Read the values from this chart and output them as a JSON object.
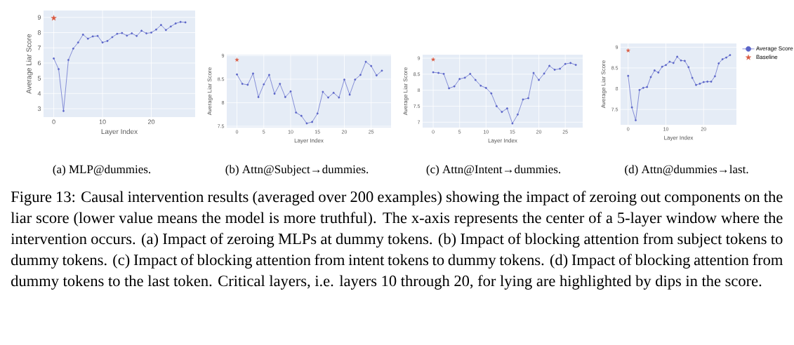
{
  "chart_data": [
    {
      "type": "line",
      "x": [
        0,
        1,
        2,
        3,
        4,
        5,
        6,
        7,
        8,
        9,
        10,
        11,
        12,
        13,
        14,
        15,
        16,
        17,
        18,
        19,
        20,
        21,
        22,
        23,
        24,
        25,
        26,
        27
      ],
      "xlim": [
        -2.1,
        29
      ],
      "ylim": [
        2.45,
        9.45
      ],
      "xticks": [
        0,
        10,
        20
      ],
      "yticks": [
        3,
        4,
        5,
        6,
        7,
        8,
        9
      ],
      "xlabel": "Layer Index",
      "ylabel": "Average Liar Score",
      "grid": true,
      "marker": "circle",
      "series": [
        {
          "color": "#5a64c8",
          "values": [
            6.3,
            5.6,
            2.85,
            6.2,
            6.95,
            7.35,
            7.87,
            7.6,
            7.75,
            7.78,
            7.35,
            7.45,
            7.7,
            7.92,
            7.97,
            7.8,
            7.95,
            7.78,
            8.12,
            7.95,
            8.0,
            8.2,
            8.5,
            8.17,
            8.4,
            8.6,
            8.7,
            8.67
          ]
        },
        {
          "type": "scatter",
          "marker": "star",
          "color": "#d9583f",
          "values": [
            8.95,
            null,
            null,
            null,
            null,
            null,
            null,
            null,
            null,
            null,
            null,
            null,
            null,
            null,
            null,
            null,
            null,
            null,
            null,
            null,
            null,
            null,
            null,
            null,
            null,
            null,
            null,
            null
          ]
        }
      ],
      "annotations": [
        "(a) MLP@dummies.",
        "Figure 13: Causal intervention results (averaged over 200 examples) showing the impact of zeroing out components on the liar score (lower value means the model is more truthful). The x-axis represents the center of a 5-layer window where the intervention occurs. (a) Impact of zeroing MLPs at dummy tokens. (b) Impact of blocking attention from subject tokens to dummy tokens. (c) Impact of blocking attention from intent tokens to dummy tokens. (d) Impact of blocking attention from dummy tokens to the last token. Critical layers, i.e. layers 10 through 20, for lying are highlighted by dips in the score."
      ]
    },
    {
      "type": "line",
      "x": [
        0,
        1,
        2,
        3,
        4,
        5,
        6,
        7,
        8,
        9,
        10,
        11,
        12,
        13,
        14,
        15,
        16,
        17,
        18,
        19,
        20,
        21,
        22,
        23,
        24,
        25,
        26,
        27
      ],
      "xlim": [
        -1.9,
        28.7
      ],
      "ylim": [
        7.47,
        9.02
      ],
      "xticks": [
        0,
        5,
        10,
        15,
        20,
        25
      ],
      "yticks": [
        7.5,
        8,
        8.5,
        9
      ],
      "xlabel": "Layer Index",
      "ylabel": "Average Liar Score",
      "grid": true,
      "marker": "circle",
      "series": [
        {
          "color": "#5a64c8",
          "values": [
            8.6,
            8.4,
            8.38,
            8.62,
            8.12,
            8.39,
            8.59,
            8.19,
            8.4,
            8.12,
            8.24,
            7.79,
            7.72,
            7.56,
            7.59,
            7.77,
            8.23,
            8.11,
            8.21,
            8.11,
            8.49,
            8.17,
            8.49,
            8.59,
            8.87,
            8.78,
            8.58,
            8.68
          ]
        },
        {
          "type": "scatter",
          "marker": "star",
          "color": "#d9583f",
          "values": [
            8.91,
            null,
            null,
            null,
            null,
            null,
            null,
            null,
            null,
            null,
            null,
            null,
            null,
            null,
            null,
            null,
            null,
            null,
            null,
            null,
            null,
            null,
            null,
            null,
            null,
            null,
            null,
            null
          ]
        }
      ],
      "annotations": [
        "(b) Attn@Subject→dummies."
      ]
    },
    {
      "type": "line",
      "x": [
        0,
        1,
        2,
        3,
        4,
        5,
        6,
        7,
        8,
        9,
        10,
        11,
        12,
        13,
        14,
        15,
        16,
        17,
        18,
        19,
        20,
        21,
        22,
        23,
        24,
        25,
        26,
        27
      ],
      "xlim": [
        -2,
        28.3
      ],
      "ylim": [
        6.83,
        9.11
      ],
      "xticks": [
        0,
        5,
        10,
        15,
        20,
        25
      ],
      "yticks": [
        7,
        7.5,
        8,
        8.5,
        9
      ],
      "xlabel": "Layer Index",
      "ylabel": "Average Liar Score",
      "grid": true,
      "marker": "circle",
      "series": [
        {
          "color": "#5a64c8",
          "values": [
            8.56,
            8.54,
            8.51,
            8.06,
            8.12,
            8.35,
            8.39,
            8.51,
            8.32,
            8.14,
            8.07,
            7.9,
            7.5,
            7.32,
            7.43,
            6.96,
            7.24,
            7.71,
            7.75,
            8.54,
            8.32,
            8.52,
            8.76,
            8.64,
            8.67,
            8.82,
            8.85,
            8.79
          ]
        },
        {
          "type": "scatter",
          "marker": "star",
          "color": "#d9583f",
          "values": [
            8.96,
            null,
            null,
            null,
            null,
            null,
            null,
            null,
            null,
            null,
            null,
            null,
            null,
            null,
            null,
            null,
            null,
            null,
            null,
            null,
            null,
            null,
            null,
            null,
            null,
            null,
            null,
            null
          ]
        }
      ],
      "annotations": [
        "(c) Attn@Intent→dummies."
      ]
    },
    {
      "type": "line",
      "x": [
        0,
        1,
        2,
        3,
        4,
        5,
        6,
        7,
        8,
        9,
        10,
        11,
        12,
        13,
        14,
        15,
        16,
        17,
        18,
        19,
        20,
        21,
        22,
        23,
        24,
        25,
        26,
        27
      ],
      "xlim": [
        -2,
        28.7
      ],
      "ylim": [
        7.13,
        9.09
      ],
      "xticks": [
        0,
        10,
        20
      ],
      "yticks": [
        7.5,
        8,
        8.5,
        9
      ],
      "xlabel": "Layer Index",
      "ylabel": "Average Liar Score",
      "grid": true,
      "marker": "circle",
      "legend": "top right",
      "series": [
        {
          "name": "Average Score",
          "color": "#5a64c8",
          "values": [
            8.31,
            7.55,
            7.24,
            7.97,
            8.02,
            8.04,
            8.28,
            8.44,
            8.39,
            8.53,
            8.57,
            8.65,
            8.62,
            8.77,
            8.68,
            8.67,
            8.52,
            8.26,
            8.09,
            8.12,
            8.16,
            8.17,
            8.17,
            8.3,
            8.61,
            8.71,
            8.75,
            8.81
          ]
        },
        {
          "name": "Baseline",
          "type": "scatter",
          "marker": "star",
          "color": "#d9583f",
          "values": [
            8.92,
            null,
            null,
            null,
            null,
            null,
            null,
            null,
            null,
            null,
            null,
            null,
            null,
            null,
            null,
            null,
            null,
            null,
            null,
            null,
            null,
            null,
            null,
            null,
            null,
            null,
            null,
            null
          ]
        }
      ],
      "annotations": [
        "(d) Attn@dummies→last."
      ]
    }
  ]
}
